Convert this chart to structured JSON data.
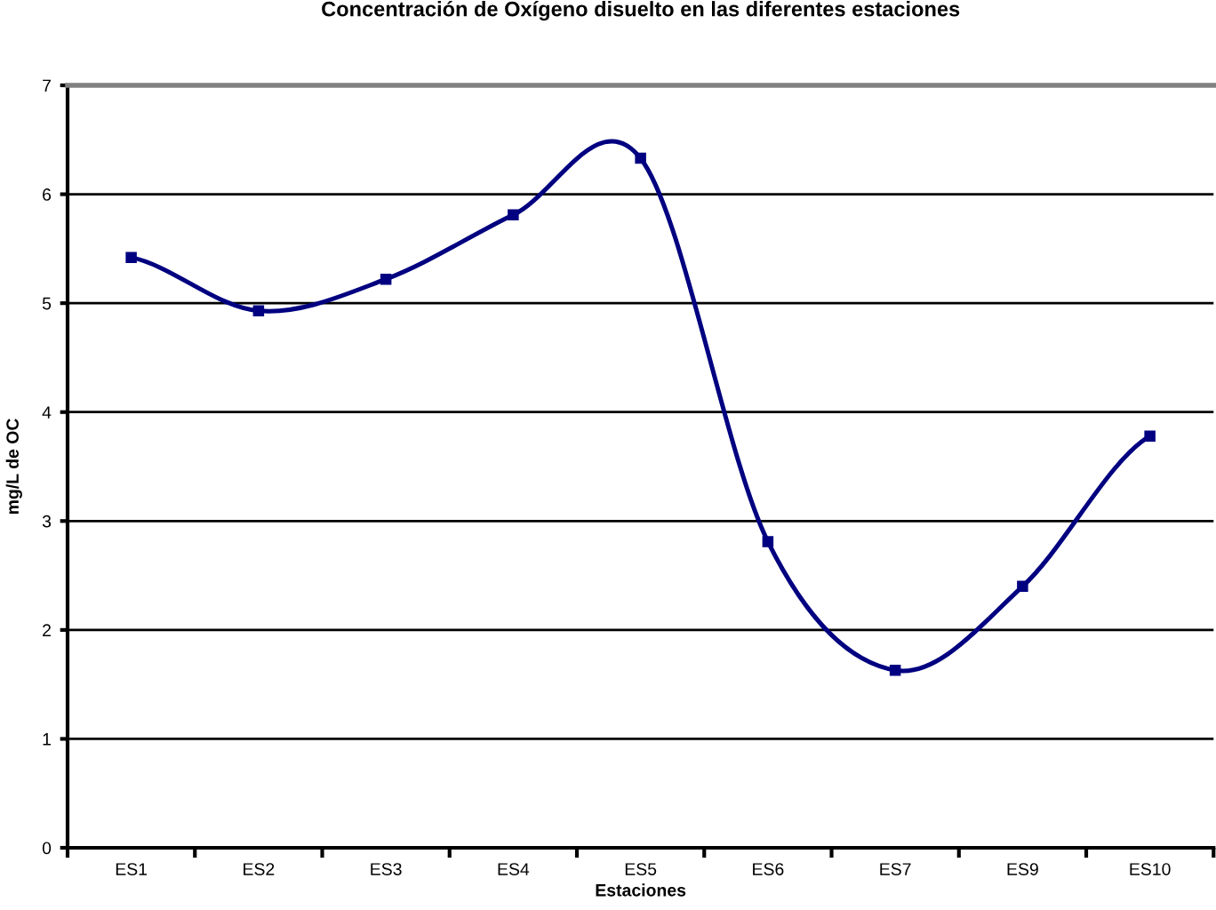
{
  "chart_data": {
    "type": "line",
    "title": "Concentración de Oxígeno disuelto en las diferentes estaciones",
    "xlabel": "Estaciones",
    "ylabel": "mg/L de OC",
    "categories": [
      "ES1",
      "ES2",
      "ES3",
      "ES4",
      "ES5",
      "ES6",
      "ES7",
      "ES9",
      "ES10"
    ],
    "series": [
      {
        "color": "#000080",
        "values": [
          5.42,
          4.93,
          5.22,
          5.81,
          6.33,
          2.81,
          1.63,
          2.4,
          3.78
        ]
      }
    ],
    "ylim": [
      0,
      7
    ],
    "yticks": [
      0,
      1,
      2,
      3,
      4,
      5,
      6,
      7
    ],
    "grid": "y",
    "marker": "square",
    "line_style": "solid",
    "legend": false
  }
}
